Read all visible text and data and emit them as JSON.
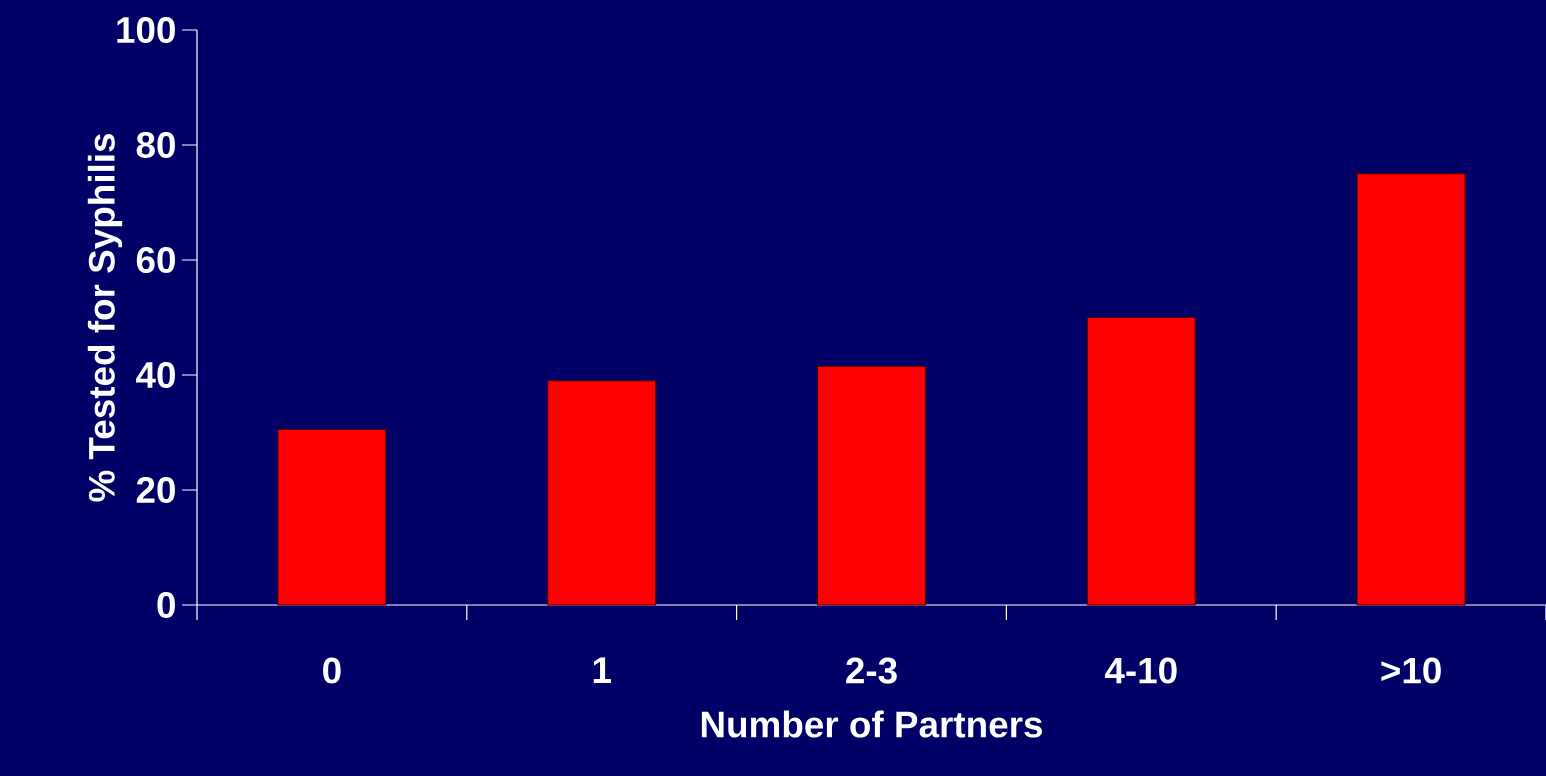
{
  "chart_data": {
    "type": "bar",
    "xlabel": "Number of Partners",
    "ylabel": "% Tested for Syphilis",
    "categories": [
      "0",
      "1",
      "2-3",
      "4-10",
      ">10"
    ],
    "values": [
      30.5,
      39,
      41.5,
      50,
      75
    ],
    "color": "#ff0000",
    "ylim": [
      0,
      100
    ],
    "yticks": [
      0,
      20,
      40,
      60,
      80,
      100
    ]
  }
}
